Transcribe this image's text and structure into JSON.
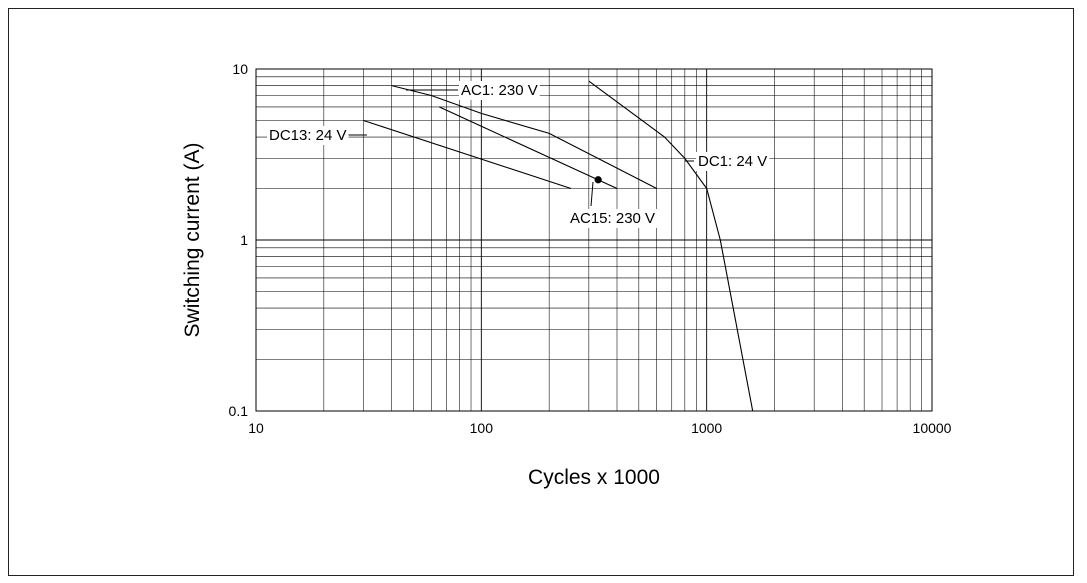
{
  "chart_data": {
    "type": "line",
    "title": "",
    "xlabel": "Cycles x 1000",
    "ylabel": "Switching current (A)",
    "x_scale": "log",
    "y_scale": "log",
    "xlim": [
      10,
      10000
    ],
    "ylim": [
      0.1,
      10
    ],
    "x_ticks": [
      "10",
      "100",
      "1000",
      "10000"
    ],
    "y_ticks": [
      "10",
      "1",
      "0.1"
    ],
    "grid": true,
    "colors": {
      "line": "#000000",
      "grid": "#000000",
      "background": "#ffffff"
    },
    "series": [
      {
        "name": "AC1: 230 V",
        "points": [
          [
            40,
            8
          ],
          [
            60,
            7
          ],
          [
            100,
            5.5
          ],
          [
            200,
            4.2
          ],
          [
            600,
            2
          ]
        ]
      },
      {
        "name": "DC13: 24 V",
        "points": [
          [
            30,
            5
          ],
          [
            250,
            2
          ]
        ]
      },
      {
        "name": "AC15: 230 V",
        "points": [
          [
            65,
            6
          ],
          [
            400,
            2
          ]
        ],
        "marker": [
          330,
          2.25
        ]
      },
      {
        "name": "DC1: 24 V",
        "points": [
          [
            300,
            8.5
          ],
          [
            650,
            4
          ],
          [
            800,
            3
          ],
          [
            1000,
            2
          ],
          [
            1150,
            1
          ],
          [
            1600,
            0.1
          ]
        ]
      }
    ]
  }
}
